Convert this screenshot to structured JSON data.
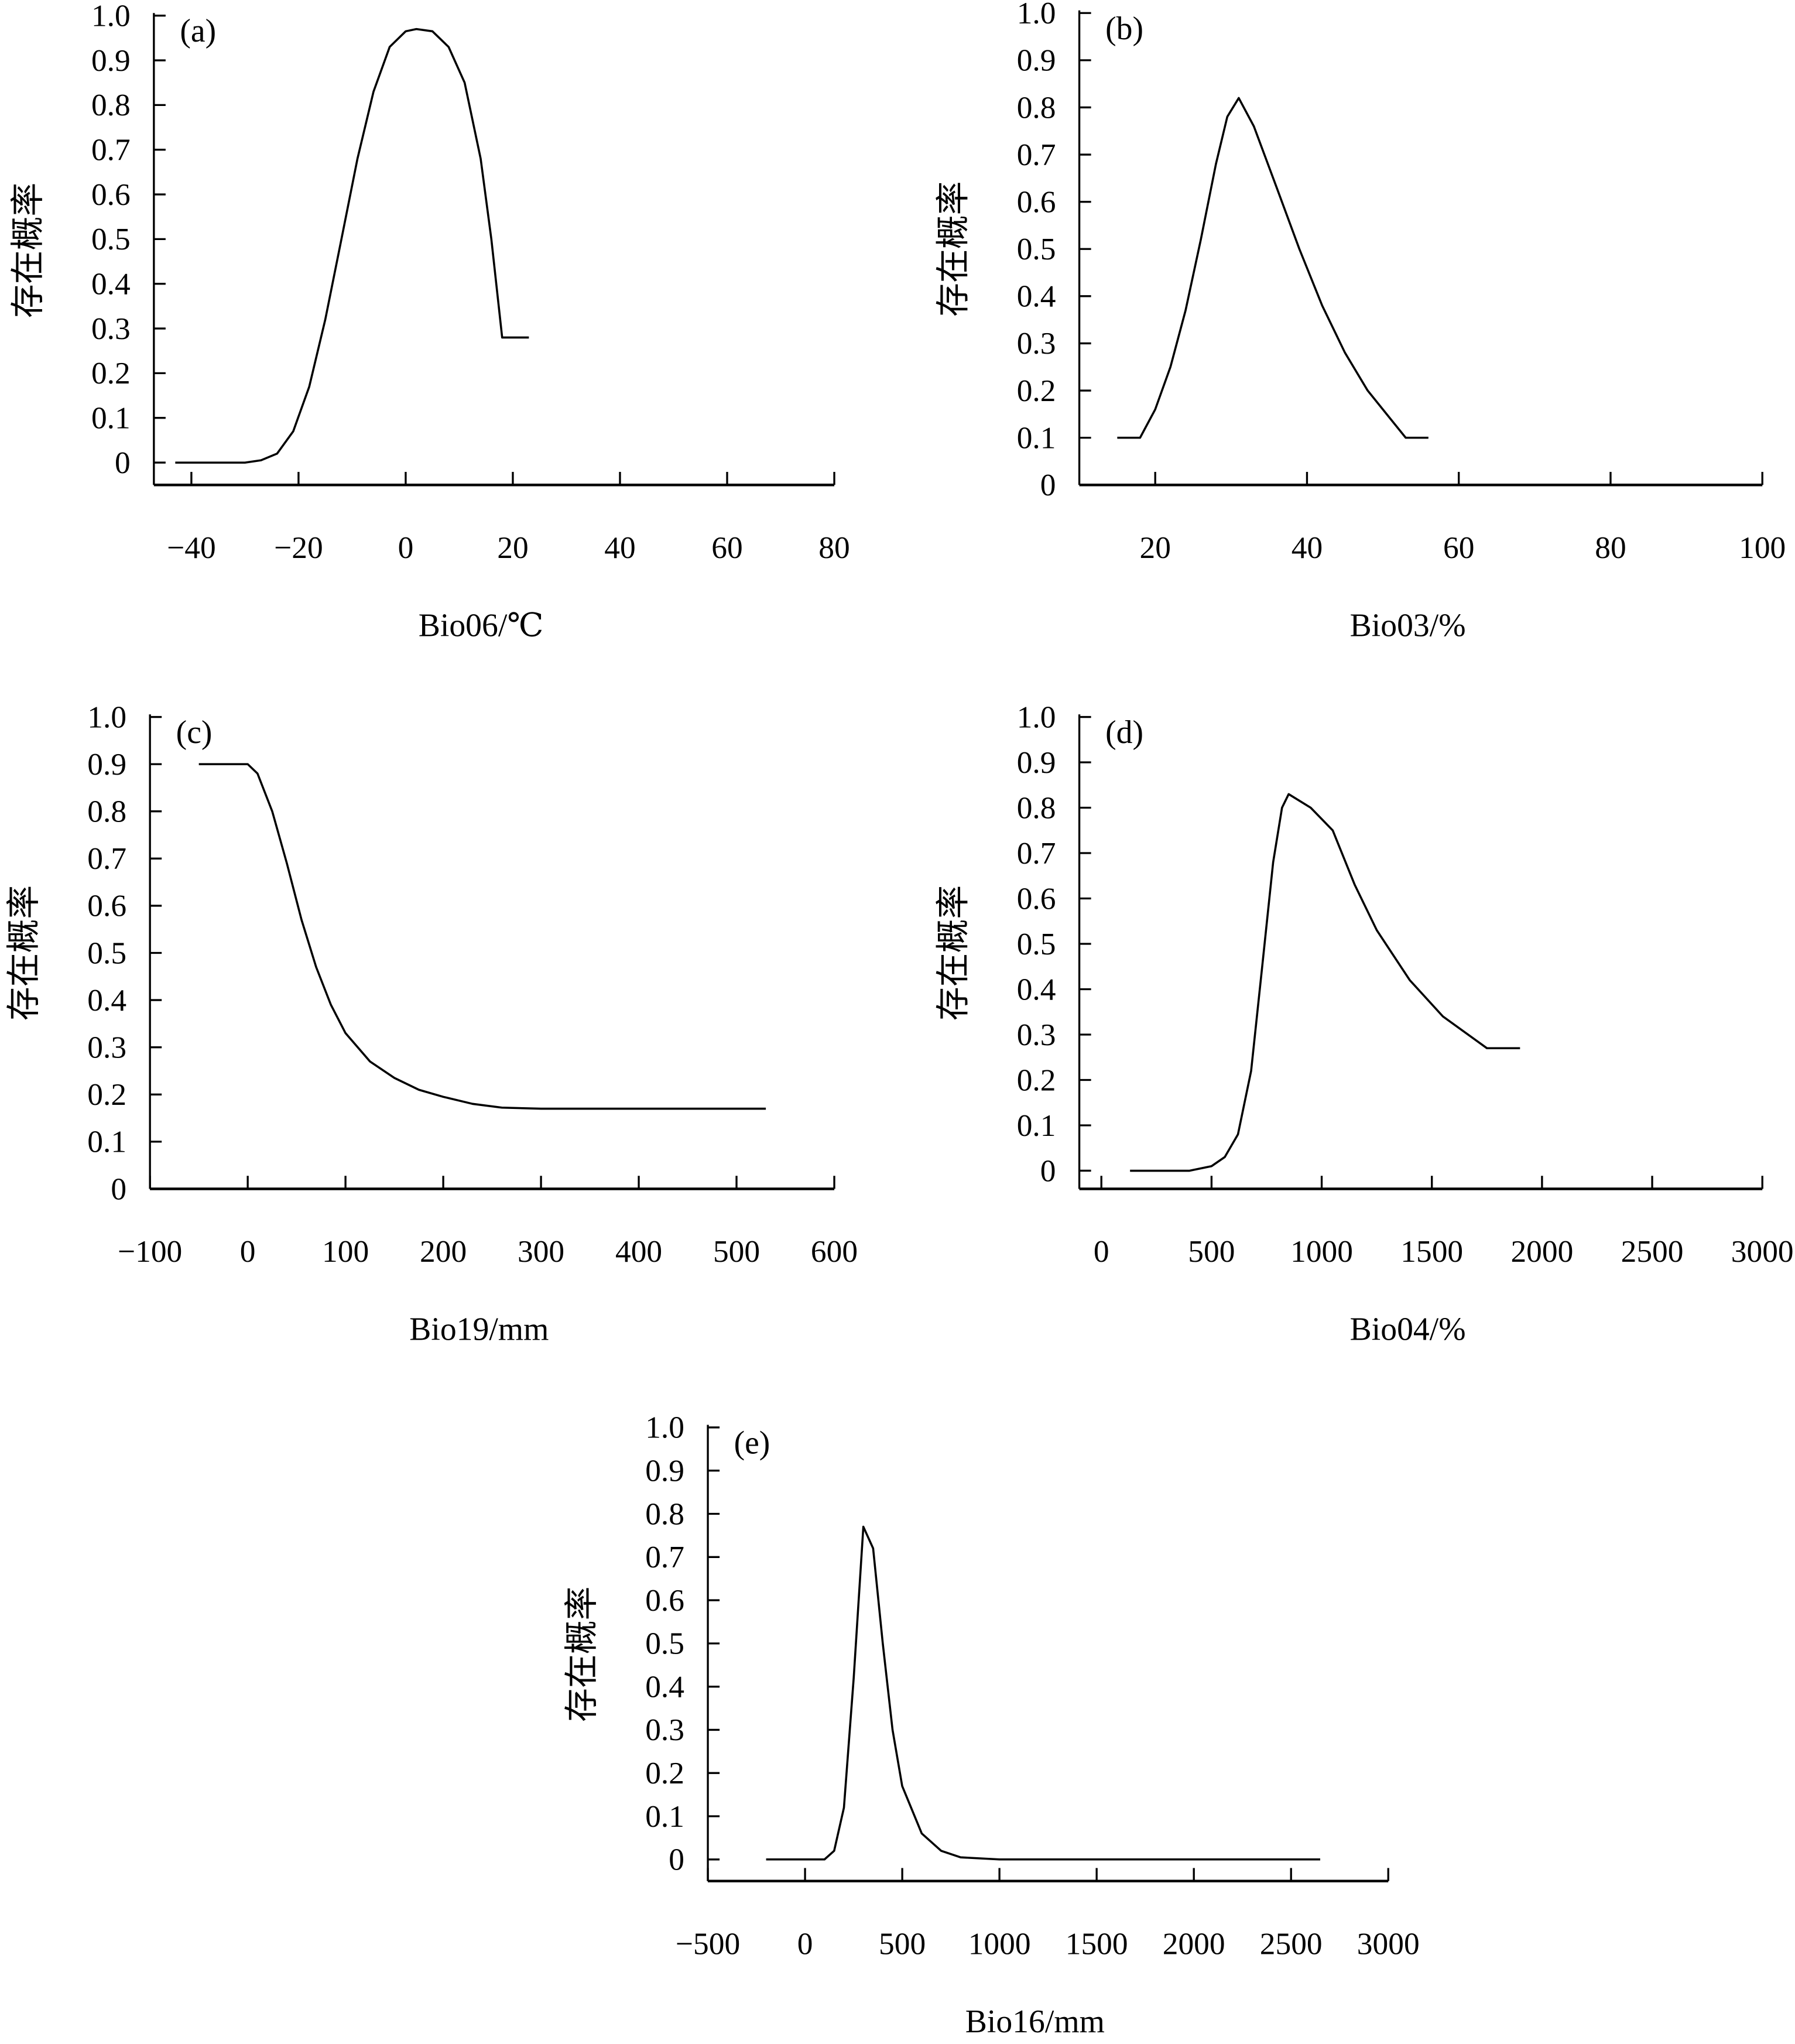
{
  "chart_data": [
    {
      "type": "line",
      "panel": "(a)",
      "xlabel": "Bio06/℃",
      "ylabel": "存在概率",
      "xlim": [
        -47,
        80
      ],
      "ylim": [
        -0.05,
        1.0
      ],
      "xticks": [
        -40,
        -20,
        0,
        20,
        40,
        60,
        80
      ],
      "xtick_labels": [
        "−40",
        "−20",
        "0",
        "20",
        "40",
        "60",
        "80"
      ],
      "yticks": [
        0,
        0.1,
        0.2,
        0.3,
        0.4,
        0.5,
        0.6,
        0.7,
        0.8,
        0.9,
        1.0
      ],
      "ytick_labels": [
        "0",
        "0.1",
        "0.2",
        "0.3",
        "0.4",
        "0.5",
        "0.6",
        "0.7",
        "0.8",
        "0.9",
        "1.0"
      ],
      "x": [
        -43,
        -30,
        -27,
        -24,
        -21,
        -18,
        -15,
        -12,
        -9,
        -6,
        -3,
        0,
        2,
        5,
        8,
        11,
        14,
        16,
        18,
        23
      ],
      "y": [
        0,
        0,
        0.005,
        0.02,
        0.07,
        0.17,
        0.32,
        0.5,
        0.68,
        0.83,
        0.93,
        0.965,
        0.97,
        0.965,
        0.93,
        0.85,
        0.68,
        0.5,
        0.28,
        0.28
      ]
    },
    {
      "type": "line",
      "panel": "(b)",
      "xlabel": "Bio03/%",
      "ylabel": "存在概率",
      "xlim": [
        10,
        100
      ],
      "ylim": [
        0,
        1.0
      ],
      "xticks": [
        20,
        40,
        60,
        80,
        100
      ],
      "xtick_labels": [
        "20",
        "40",
        "60",
        "80",
        "100"
      ],
      "yticks": [
        0,
        0.1,
        0.2,
        0.3,
        0.4,
        0.5,
        0.6,
        0.7,
        0.8,
        0.9,
        1.0
      ],
      "ytick_labels": [
        "0",
        "0.1",
        "0.2",
        "0.3",
        "0.4",
        "0.5",
        "0.6",
        "0.7",
        "0.8",
        "0.9",
        "1.0"
      ],
      "x": [
        15,
        18,
        20,
        22,
        24,
        26,
        28,
        29.5,
        31,
        33,
        36,
        39,
        42,
        45,
        48,
        51,
        53,
        56
      ],
      "y": [
        0.1,
        0.1,
        0.16,
        0.25,
        0.37,
        0.52,
        0.68,
        0.78,
        0.82,
        0.76,
        0.63,
        0.5,
        0.38,
        0.28,
        0.2,
        0.14,
        0.1,
        0.1
      ]
    },
    {
      "type": "line",
      "panel": "(c)",
      "xlabel": "Bio19/mm",
      "ylabel": "存在概率",
      "xlim": [
        -100,
        600
      ],
      "ylim": [
        0,
        1.0
      ],
      "xticks": [
        -100,
        0,
        100,
        200,
        300,
        400,
        500,
        600
      ],
      "xtick_labels": [
        "−100",
        "0",
        "100",
        "200",
        "300",
        "400",
        "500",
        "600"
      ],
      "yticks": [
        0,
        0.1,
        0.2,
        0.3,
        0.4,
        0.5,
        0.6,
        0.7,
        0.8,
        0.9,
        1.0
      ],
      "ytick_labels": [
        "0",
        "0.1",
        "0.2",
        "0.3",
        "0.4",
        "0.5",
        "0.6",
        "0.7",
        "0.8",
        "0.9",
        "1.0"
      ],
      "x": [
        -50,
        0,
        10,
        25,
        40,
        55,
        70,
        85,
        100,
        125,
        150,
        175,
        200,
        230,
        260,
        300,
        530
      ],
      "y": [
        0.9,
        0.9,
        0.88,
        0.8,
        0.69,
        0.57,
        0.47,
        0.39,
        0.33,
        0.27,
        0.235,
        0.21,
        0.195,
        0.18,
        0.172,
        0.17,
        0.17
      ]
    },
    {
      "type": "line",
      "panel": "(d)",
      "xlabel": "Bio04/%",
      "ylabel": "存在概率",
      "xlim": [
        -100,
        3000
      ],
      "ylim": [
        -0.04,
        1.0
      ],
      "xticks": [
        0,
        500,
        1000,
        1500,
        2000,
        2500,
        3000
      ],
      "xtick_labels": [
        "0",
        "500",
        "1000",
        "1500",
        "2000",
        "2500",
        "3000"
      ],
      "yticks": [
        0,
        0.1,
        0.2,
        0.3,
        0.4,
        0.5,
        0.6,
        0.7,
        0.8,
        0.9,
        1.0
      ],
      "ytick_labels": [
        "0",
        "0.1",
        "0.2",
        "0.3",
        "0.4",
        "0.5",
        "0.6",
        "0.7",
        "0.8",
        "0.9",
        "1.0"
      ],
      "x": [
        130,
        400,
        500,
        560,
        620,
        680,
        730,
        780,
        820,
        850,
        950,
        1050,
        1150,
        1250,
        1400,
        1550,
        1750,
        1900
      ],
      "y": [
        0,
        0,
        0.01,
        0.03,
        0.08,
        0.22,
        0.45,
        0.68,
        0.8,
        0.83,
        0.8,
        0.75,
        0.63,
        0.53,
        0.42,
        0.34,
        0.27,
        0.27
      ]
    },
    {
      "type": "line",
      "panel": "(e)",
      "xlabel": "Bio16/mm",
      "ylabel": "存在概率",
      "xlim": [
        -500,
        3000
      ],
      "ylim": [
        -0.05,
        1.0
      ],
      "xticks": [
        -500,
        0,
        500,
        1000,
        1500,
        2000,
        2500,
        3000
      ],
      "xtick_labels": [
        "−500",
        "0",
        "500",
        "1000",
        "1500",
        "2000",
        "2500",
        "3000"
      ],
      "yticks": [
        0,
        0.1,
        0.2,
        0.3,
        0.4,
        0.5,
        0.6,
        0.7,
        0.8,
        0.9,
        1.0
      ],
      "ytick_labels": [
        "0",
        "0.1",
        "0.2",
        "0.3",
        "0.4",
        "0.5",
        "0.6",
        "0.7",
        "0.8",
        "0.9",
        "1.0"
      ],
      "x": [
        -200,
        100,
        150,
        200,
        250,
        300,
        350,
        400,
        450,
        500,
        600,
        700,
        800,
        1000,
        2650
      ],
      "y": [
        0,
        0,
        0.02,
        0.12,
        0.42,
        0.77,
        0.72,
        0.5,
        0.3,
        0.17,
        0.06,
        0.02,
        0.005,
        0,
        0
      ]
    }
  ]
}
